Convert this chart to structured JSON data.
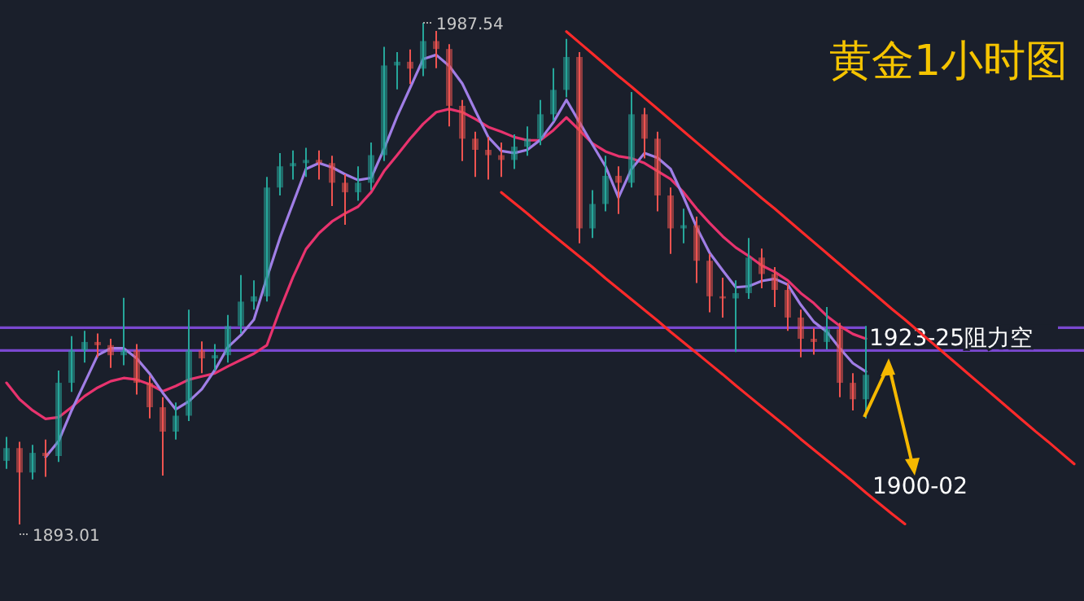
{
  "chart_data": {
    "type": "candlestick",
    "title": "黄金1小时图",
    "categories": [
      null,
      null,
      null,
      null,
      null,
      null,
      null,
      null,
      null,
      null,
      null,
      null,
      null,
      null,
      null,
      null,
      null,
      null,
      null,
      null,
      null,
      null,
      null,
      null,
      null,
      null,
      null,
      null,
      null,
      null,
      null,
      null,
      null,
      null,
      null,
      null,
      null,
      null,
      null,
      null,
      null,
      null,
      null,
      null,
      null,
      null,
      null,
      null,
      null,
      null,
      null,
      null,
      null,
      null,
      null,
      null,
      null,
      null,
      null,
      null,
      null,
      null,
      null,
      null,
      null,
      null,
      null,
      null,
      null,
      null,
      null,
      null,
      null,
      null,
      null,
      null,
      null,
      null,
      null,
      null,
      null,
      null,
      null
    ],
    "ohlc": [
      [
        1905.0,
        1909.5,
        1903.5,
        1907.4
      ],
      [
        1907.4,
        1908.6,
        1893.01,
        1902.8
      ],
      [
        1902.8,
        1908.0,
        1901.5,
        1906.5
      ],
      [
        1906.5,
        1909.0,
        1902.0,
        1905.9
      ],
      [
        1905.9,
        1922.0,
        1904.8,
        1919.7
      ],
      [
        1919.7,
        1928.5,
        1918.0,
        1925.8
      ],
      [
        1925.8,
        1929.5,
        1923.5,
        1927.4
      ],
      [
        1927.4,
        1929.0,
        1924.5,
        1926.8
      ],
      [
        1926.8,
        1928.0,
        1922.5,
        1924.9
      ],
      [
        1924.9,
        1935.7,
        1923.0,
        1925.8
      ],
      [
        1925.8,
        1927.0,
        1917.5,
        1919.7
      ],
      [
        1919.7,
        1921.0,
        1913.0,
        1915.1
      ],
      [
        1915.1,
        1917.0,
        1902.2,
        1910.5
      ],
      [
        1910.5,
        1916.0,
        1909.0,
        1913.5
      ],
      [
        1913.5,
        1933.5,
        1912.5,
        1925.8
      ],
      [
        1925.8,
        1927.5,
        1921.5,
        1924.3
      ],
      [
        1924.3,
        1927.0,
        1922.0,
        1924.9
      ],
      [
        1924.9,
        1932.5,
        1923.5,
        1930.4
      ],
      [
        1930.4,
        1940.0,
        1929.0,
        1935.0
      ],
      [
        1935.0,
        1939.0,
        1933.5,
        1936.0
      ],
      [
        1936.0,
        1958.5,
        1935.0,
        1956.5
      ],
      [
        1956.5,
        1963.0,
        1955.0,
        1960.5
      ],
      [
        1960.5,
        1963.5,
        1958.0,
        1961.1
      ],
      [
        1961.1,
        1964.0,
        1958.5,
        1961.7
      ],
      [
        1961.7,
        1963.5,
        1958.0,
        1961.1
      ],
      [
        1961.1,
        1962.5,
        1953.0,
        1957.4
      ],
      [
        1957.4,
        1959.0,
        1949.5,
        1955.6
      ],
      [
        1955.6,
        1960.5,
        1954.0,
        1957.4
      ],
      [
        1957.4,
        1965.0,
        1956.0,
        1962.6
      ],
      [
        1962.6,
        1983.0,
        1961.5,
        1979.5
      ],
      [
        1979.5,
        1982.0,
        1975.0,
        1980.2
      ],
      [
        1980.2,
        1982.5,
        1976.0,
        1978.9
      ],
      [
        1978.9,
        1987.54,
        1977.5,
        1984.1
      ],
      [
        1984.1,
        1986.0,
        1979.0,
        1982.6
      ],
      [
        1982.6,
        1983.5,
        1968.0,
        1971.9
      ],
      [
        1971.9,
        1973.0,
        1961.5,
        1965.7
      ],
      [
        1965.7,
        1967.0,
        1958.5,
        1963.6
      ],
      [
        1963.6,
        1966.0,
        1958.0,
        1962.6
      ],
      [
        1962.6,
        1965.0,
        1958.5,
        1961.7
      ],
      [
        1961.7,
        1966.5,
        1960.0,
        1964.2
      ],
      [
        1964.2,
        1968.0,
        1962.5,
        1965.7
      ],
      [
        1965.7,
        1973.0,
        1964.5,
        1970.3
      ],
      [
        1970.3,
        1979.0,
        1969.0,
        1974.9
      ],
      [
        1974.9,
        1984.5,
        1973.5,
        1981.1
      ],
      [
        1981.1,
        1982.0,
        1946.0,
        1948.8
      ],
      [
        1948.8,
        1956.0,
        1947.0,
        1953.4
      ],
      [
        1953.4,
        1962.5,
        1952.0,
        1958.7
      ],
      [
        1958.7,
        1960.5,
        1951.5,
        1957.4
      ],
      [
        1957.4,
        1974.5,
        1956.5,
        1970.3
      ],
      [
        1970.3,
        1971.5,
        1962.0,
        1965.7
      ],
      [
        1965.7,
        1967.0,
        1952.0,
        1955.0
      ],
      [
        1955.0,
        1956.5,
        1944.0,
        1948.8
      ],
      [
        1948.8,
        1952.5,
        1946.0,
        1949.4
      ],
      [
        1949.4,
        1951.0,
        1938.5,
        1942.7
      ],
      [
        1942.7,
        1944.0,
        1933.0,
        1936.0
      ],
      [
        1936.0,
        1939.5,
        1932.0,
        1935.6
      ],
      [
        1935.6,
        1939.0,
        1925.5,
        1936.6
      ],
      [
        1936.6,
        1947.0,
        1935.5,
        1943.3
      ],
      [
        1943.3,
        1945.0,
        1937.5,
        1940.2
      ],
      [
        1940.2,
        1941.5,
        1934.0,
        1937.2
      ],
      [
        1937.2,
        1938.5,
        1929.5,
        1932.0
      ],
      [
        1932.0,
        1933.5,
        1924.5,
        1928.0
      ],
      [
        1928.0,
        1930.0,
        1925.0,
        1927.4
      ],
      [
        1927.4,
        1934.0,
        1926.0,
        1929.8
      ],
      [
        1929.8,
        1931.0,
        1917.0,
        1919.7
      ],
      [
        1919.7,
        1921.5,
        1914.5,
        1916.6
      ],
      [
        1916.6,
        1930.4,
        1913.0,
        1921.2
      ],
      null,
      null,
      null,
      null,
      null,
      null,
      null,
      null,
      null,
      null,
      null,
      null,
      null,
      null,
      null,
      null
    ],
    "series": [
      {
        "type": "line",
        "color": "#e8336e",
        "values": [
          1919.7,
          1916.6,
          1914.5,
          1912.9,
          1913.2,
          1915.1,
          1917.2,
          1918.8,
          1920.0,
          1920.6,
          1920.3,
          1919.4,
          1918.1,
          1919.1,
          1920.3,
          1920.9,
          1921.5,
          1922.8,
          1924.0,
          1925.2,
          1926.8,
          1933.5,
          1939.6,
          1944.9,
          1947.9,
          1950.1,
          1951.6,
          1952.9,
          1955.6,
          1959.6,
          1962.6,
          1965.7,
          1968.5,
          1970.7,
          1971.3,
          1970.7,
          1969.4,
          1967.9,
          1967.0,
          1966.0,
          1965.4,
          1965.4,
          1967.3,
          1969.7,
          1967.3,
          1964.8,
          1963.3,
          1962.4,
          1962.0,
          1961.1,
          1959.6,
          1958.1,
          1955.6,
          1952.5,
          1949.8,
          1947.3,
          1945.2,
          1943.6,
          1941.8,
          1940.6,
          1939.0,
          1936.6,
          1934.7,
          1932.3,
          1930.4,
          1928.9,
          1928.0,
          null,
          null,
          null,
          null,
          null,
          null,
          null,
          null,
          null,
          null,
          null,
          null,
          null,
          null,
          null,
          null
        ]
      },
      {
        "type": "line",
        "color": "#a07ee6",
        "values": [
          null,
          null,
          null,
          1905.7,
          1908.7,
          1914.5,
          1919.7,
          1924.9,
          1926.2,
          1926.2,
          1924.3,
          1921.4,
          1917.8,
          1914.7,
          1916.2,
          1918.5,
          1922.1,
          1926.4,
          1928.7,
          1931.6,
          1939.5,
          1947.0,
          1953.5,
          1960.0,
          1961.1,
          1960.3,
          1959.0,
          1957.9,
          1958.3,
          1963.8,
          1969.9,
          1975.3,
          1980.7,
          1981.5,
          1979.4,
          1976.1,
          1971.0,
          1966.0,
          1963.4,
          1963.0,
          1963.6,
          1965.5,
          1968.8,
          1973.0,
          1968.8,
          1964.6,
          1960.5,
          1954.6,
          1960.0,
          1963.0,
          1962.1,
          1960.0,
          1954.7,
          1949.0,
          1944.2,
          1940.9,
          1937.7,
          1937.9,
          1938.9,
          1939.3,
          1938.2,
          1934.4,
          1931.2,
          1929.3,
          1926.2,
          1923.4,
          1921.8,
          null,
          null,
          null,
          null,
          null,
          null,
          null,
          null,
          null,
          null,
          null,
          null,
          null,
          null,
          null,
          null
        ]
      },
      {
        "type": "line",
        "color": "#ff2a2a",
        "values": [
          null,
          null,
          null,
          null,
          null,
          null,
          null,
          null,
          null,
          null,
          null,
          null,
          null,
          null,
          null,
          null,
          null,
          null,
          null,
          null,
          null,
          null,
          null,
          null,
          null,
          null,
          null,
          null,
          null,
          null,
          null,
          null,
          null,
          null,
          null,
          null,
          null,
          null,
          null,
          null,
          null,
          null,
          null,
          1985.9,
          1983.8,
          1981.7,
          1979.6,
          1977.5,
          1975.5,
          1973.4,
          1971.3,
          1969.2,
          1967.1,
          1965.0,
          1962.9,
          1960.8,
          1958.7,
          1956.6,
          1954.5,
          1952.5,
          1950.4,
          1948.3,
          1946.2,
          1944.1,
          1942.0,
          1939.9,
          1937.8,
          1935.7,
          1933.6,
          1931.6,
          1929.5,
          1927.4,
          1925.3,
          1923.2,
          1921.1,
          1919.0,
          1916.9,
          1914.8,
          1912.7,
          1910.6,
          1908.6,
          1906.5,
          1904.4
        ]
      },
      {
        "type": "line",
        "color": "#ff2a2a",
        "values": [
          null,
          null,
          null,
          null,
          null,
          null,
          null,
          null,
          null,
          null,
          null,
          null,
          null,
          null,
          null,
          null,
          null,
          null,
          null,
          null,
          null,
          null,
          null,
          null,
          null,
          null,
          null,
          null,
          null,
          null,
          null,
          null,
          null,
          null,
          null,
          null,
          null,
          null,
          1955.6,
          1953.6,
          1951.6,
          1949.5,
          1947.5,
          1945.5,
          1943.5,
          1941.5,
          1939.4,
          1937.4,
          1935.4,
          1933.4,
          1931.4,
          1929.3,
          1927.3,
          1925.3,
          1923.3,
          1921.3,
          1919.2,
          1917.2,
          1915.2,
          1913.2,
          1911.2,
          1909.1,
          1907.1,
          1905.1,
          1903.1,
          1901.1,
          1899.0,
          1897.0,
          1895.0,
          1893.1,
          null,
          null,
          null,
          null,
          null,
          null,
          null,
          null,
          null,
          null,
          null,
          null,
          null
        ]
      }
    ],
    "ref_lines": [
      {
        "axis": "y",
        "value": 1930.1,
        "color": "#7a48d0"
      },
      {
        "axis": "y",
        "value": 1925.8,
        "color": "#7a48d0",
        "label": "1923-25阻力空"
      }
    ],
    "annotations": [
      "1987.54",
      "1893.01",
      "1900-02"
    ]
  }
}
